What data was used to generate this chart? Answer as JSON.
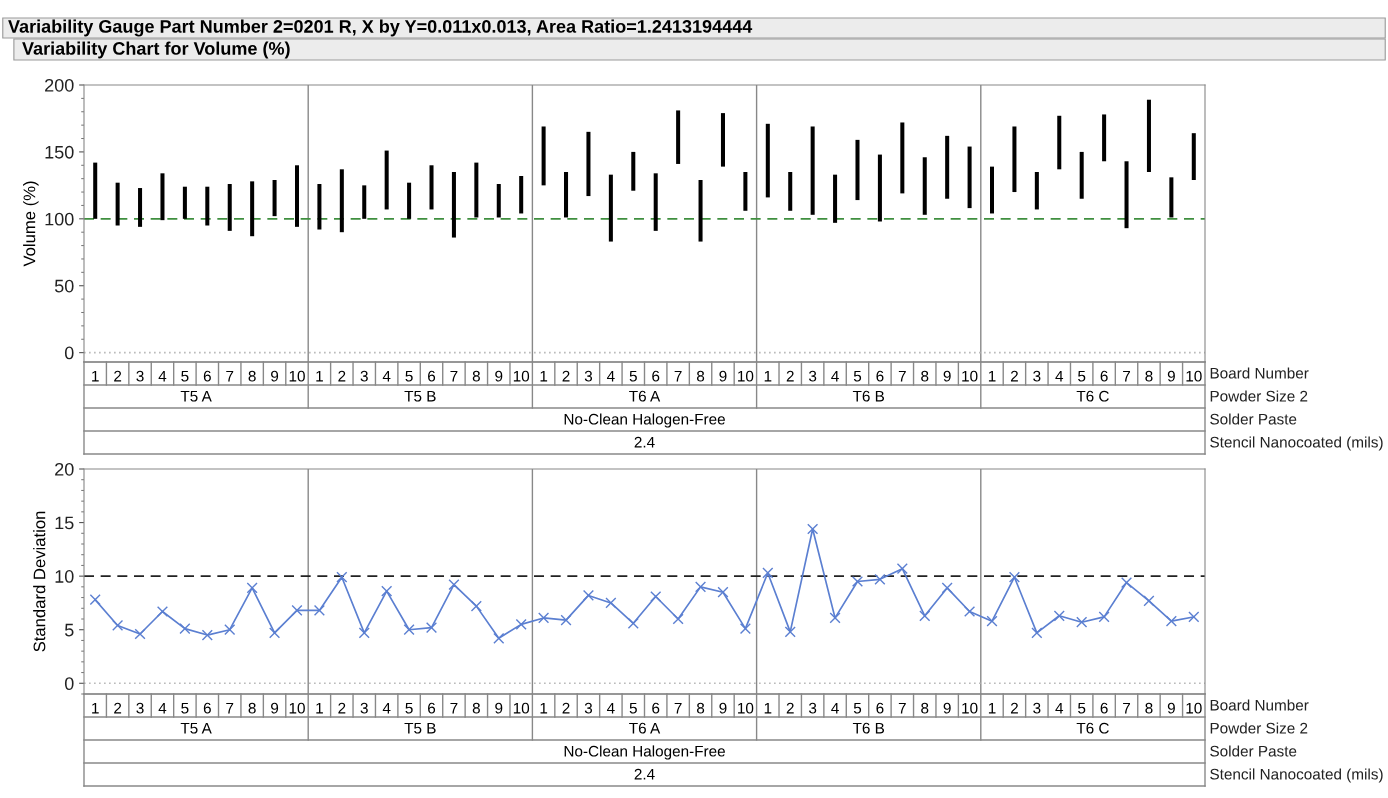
{
  "chart_data": [
    {
      "type": "bar",
      "title": "Variability Gauge Part Number 2=0201 R, X by Y=0.011x0.013, Area Ratio=1.2413194444",
      "subtitle": "Variability Chart for Volume (%)",
      "ylabel": "Volume (%)",
      "categories": [
        "1",
        "2",
        "3",
        "4",
        "5",
        "6",
        "7",
        "8",
        "9",
        "10",
        "1",
        "2",
        "3",
        "4",
        "5",
        "6",
        "7",
        "8",
        "9",
        "10",
        "1",
        "2",
        "3",
        "4",
        "5",
        "6",
        "7",
        "8",
        "9",
        "10",
        "1",
        "2",
        "3",
        "4",
        "5",
        "6",
        "7",
        "8",
        "9",
        "10",
        "1",
        "2",
        "3",
        "4",
        "5",
        "6",
        "7",
        "8",
        "9",
        "10"
      ],
      "base": [
        100,
        95,
        94,
        99,
        100,
        95,
        91,
        87,
        102,
        94,
        92,
        90,
        100,
        107,
        100,
        107,
        86,
        101,
        101,
        104,
        125,
        101,
        117,
        83,
        121,
        91,
        141,
        83,
        139,
        106,
        116,
        106,
        103,
        97,
        114,
        98,
        119,
        103,
        115,
        108,
        104,
        120,
        107,
        137,
        115,
        143,
        93,
        135,
        101,
        129
      ],
      "values": [
        42,
        32,
        29,
        35,
        24,
        29,
        35,
        41,
        27,
        46,
        34,
        47,
        25,
        44,
        27,
        33,
        49,
        41,
        25,
        28,
        44,
        34,
        48,
        50,
        29,
        43,
        40,
        46,
        40,
        29,
        55,
        29,
        66,
        36,
        45,
        50,
        53,
        43,
        47,
        46,
        35,
        49,
        28,
        40,
        35,
        35,
        50,
        54,
        30,
        35
      ],
      "color": "#000000",
      "ylim": [
        -7,
        200
      ],
      "yticks": [
        0,
        50,
        100,
        150,
        200
      ],
      "grid": false,
      "ref_lines": [
        {
          "axis": "y",
          "value": 100,
          "color": "#3f8f3f",
          "line_style": "dashed"
        },
        {
          "axis": "y",
          "value": 0,
          "color": "#bbbbbb",
          "line_style": "dotted"
        }
      ],
      "annotations": [
        "Board Number",
        "Powder Size 2",
        "Solder Paste",
        "Stencil Nanocoated (mils)",
        "T5 A",
        "T5 B",
        "T6 A",
        "T6 B",
        "T6 C",
        "No-Clean Halogen-Free",
        "2.4"
      ]
    },
    {
      "type": "line",
      "ylabel": "Standard Deviation",
      "categories": [
        "1",
        "2",
        "3",
        "4",
        "5",
        "6",
        "7",
        "8",
        "9",
        "10",
        "1",
        "2",
        "3",
        "4",
        "5",
        "6",
        "7",
        "8",
        "9",
        "10",
        "1",
        "2",
        "3",
        "4",
        "5",
        "6",
        "7",
        "8",
        "9",
        "10",
        "1",
        "2",
        "3",
        "4",
        "5",
        "6",
        "7",
        "8",
        "9",
        "10",
        "1",
        "2",
        "3",
        "4",
        "5",
        "6",
        "7",
        "8",
        "9",
        "10"
      ],
      "values": [
        7.8,
        5.4,
        4.6,
        6.7,
        5.1,
        4.5,
        5.0,
        8.9,
        4.7,
        6.8,
        6.8,
        9.9,
        4.7,
        8.6,
        5.0,
        5.2,
        9.2,
        7.2,
        4.2,
        5.5,
        6.1,
        5.9,
        8.2,
        7.5,
        5.6,
        8.1,
        6.0,
        9.0,
        8.5,
        5.1,
        10.3,
        4.8,
        14.4,
        6.1,
        9.5,
        9.7,
        10.7,
        6.3,
        8.9,
        6.7,
        5.8,
        9.9,
        4.7,
        6.3,
        5.7,
        6.2,
        9.4,
        7.7,
        5.8,
        6.2
      ],
      "color": "#5b7fd1",
      "marker": "cross",
      "line_style": "solid",
      "ylim": [
        -1,
        20
      ],
      "yticks": [
        0,
        5,
        10,
        15,
        20
      ],
      "grid": false,
      "ref_lines": [
        {
          "axis": "y",
          "value": 10,
          "color": "#222222",
          "line_style": "dashed"
        },
        {
          "axis": "y",
          "value": 0,
          "color": "#bbbbbb",
          "line_style": "dotted"
        }
      ],
      "annotations": [
        "Board Number",
        "Powder Size 2",
        "Solder Paste",
        "Stencil Nanocoated (mils)",
        "T5 A",
        "T5 B",
        "T6 A",
        "T6 B",
        "T6 C",
        "No-Clean Halogen-Free",
        "2.4"
      ]
    }
  ]
}
